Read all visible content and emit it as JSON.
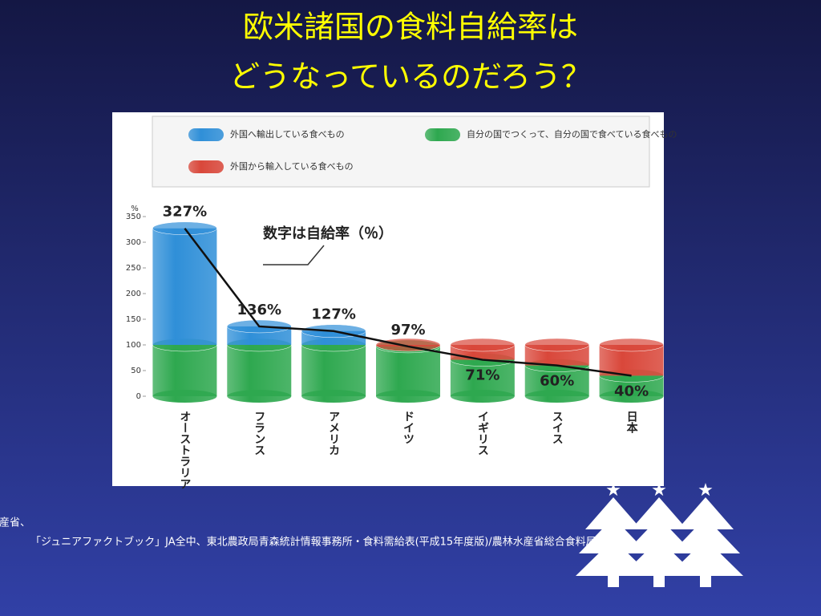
{
  "slide": {
    "title": [
      "欧米諸国の食料自給率は",
      "どうなっているのだろう？"
    ],
    "source": [
      "出典：「いちばん身近な『食べもの』のはなし」（財）食生活情報サービスセンター・農林水産省、",
      "「ジュニアファクトブック」JA全中、東北農政局青森統計情報事務所・食料需給表(平成15年度版)/農林水産省総合食料局"
    ]
  },
  "chart_data": {
    "type": "bar",
    "stacked": true,
    "categories": [
      "オーストラリア",
      "フランス",
      "アメリカ",
      "ドイツ",
      "イギリス",
      "スイス",
      "日本"
    ],
    "series": [
      {
        "name": "自分の国でつくって、自分の国で食べている食べもの",
        "color": "#2ea84f",
        "values": [
          100,
          100,
          100,
          97,
          71,
          60,
          40
        ]
      },
      {
        "name": "外国へ輸出している食べもの",
        "color": "#2f8fd8",
        "values": [
          227,
          36,
          27,
          0,
          0,
          0,
          0
        ]
      },
      {
        "name": "外国から輸入している食べもの",
        "color": "#d9473a",
        "values": [
          0,
          0,
          0,
          3,
          29,
          40,
          60
        ]
      }
    ],
    "line": {
      "name": "数字は自給率（％）",
      "color": "#111111",
      "values": [
        327,
        136,
        127,
        97,
        71,
        60,
        40
      ],
      "value_labels": [
        "327%",
        "136%",
        "127%",
        "97%",
        "71%",
        "60%",
        "40%"
      ]
    },
    "y_label": "%",
    "ylim": [
      0,
      350
    ],
    "yticks": [
      0,
      50,
      100,
      150,
      200,
      250,
      300,
      350
    ]
  }
}
